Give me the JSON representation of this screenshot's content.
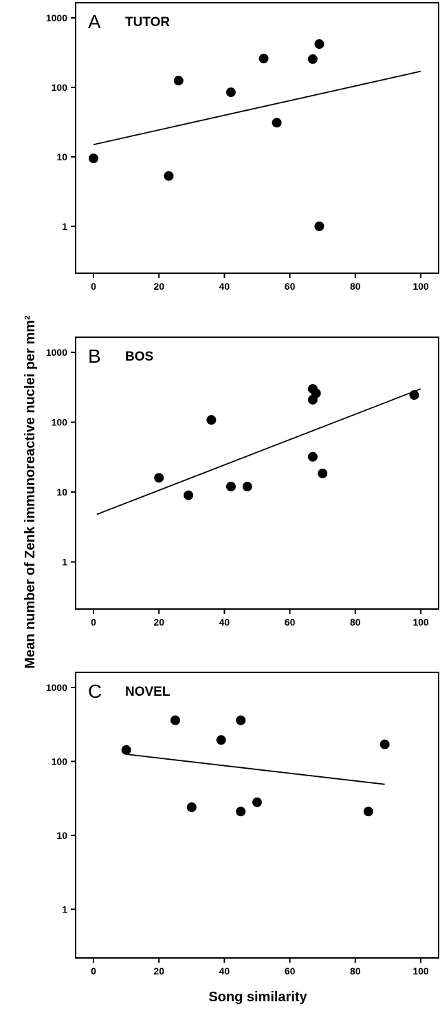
{
  "figure": {
    "ylabel": "Mean number of Zenk immunoreactive nuclei per mm²",
    "xlabel": "Song similarity"
  },
  "chart_data": [
    {
      "type": "scatter",
      "panel": "A",
      "title": "TUTOR",
      "xlim": [
        0,
        100
      ],
      "ylim": [
        0.4,
        1000
      ],
      "y_scale": "log",
      "x_ticks": [
        0,
        20,
        40,
        60,
        80,
        100
      ],
      "y_ticks": [
        1,
        10,
        100,
        1000
      ],
      "x_tick_labels": [
        "0",
        "20",
        "40",
        "60",
        "80",
        "100"
      ],
      "y_tick_labels": [
        "1",
        "10",
        "100",
        "1000"
      ],
      "points": [
        {
          "x": 0,
          "y": 9.5
        },
        {
          "x": 23,
          "y": 5.3
        },
        {
          "x": 26,
          "y": 125
        },
        {
          "x": 42,
          "y": 85
        },
        {
          "x": 52,
          "y": 260
        },
        {
          "x": 56,
          "y": 31
        },
        {
          "x": 67,
          "y": 255
        },
        {
          "x": 69,
          "y": 1
        },
        {
          "x": 69,
          "y": 420
        }
      ],
      "fit_line": {
        "x": [
          0,
          100
        ],
        "y": [
          15,
          170
        ]
      }
    },
    {
      "type": "scatter",
      "panel": "B",
      "title": "BOS",
      "xlim": [
        0,
        100
      ],
      "ylim": [
        0.4,
        1000
      ],
      "y_scale": "log",
      "x_ticks": [
        0,
        20,
        40,
        60,
        80,
        100
      ],
      "y_ticks": [
        1,
        10,
        100,
        1000
      ],
      "x_tick_labels": [
        "0",
        "20",
        "40",
        "60",
        "80",
        "100"
      ],
      "y_tick_labels": [
        "1",
        "10",
        "100",
        "1000"
      ],
      "points": [
        {
          "x": 20,
          "y": 16
        },
        {
          "x": 29,
          "y": 9
        },
        {
          "x": 36,
          "y": 108
        },
        {
          "x": 42,
          "y": 12
        },
        {
          "x": 47,
          "y": 12
        },
        {
          "x": 67,
          "y": 300
        },
        {
          "x": 67,
          "y": 210
        },
        {
          "x": 67,
          "y": 32
        },
        {
          "x": 68,
          "y": 260
        },
        {
          "x": 70,
          "y": 18.5
        },
        {
          "x": 98,
          "y": 245
        }
      ],
      "fit_line": {
        "x": [
          1,
          100
        ],
        "y": [
          4.8,
          300
        ]
      }
    },
    {
      "type": "scatter",
      "panel": "C",
      "title": "NOVEL",
      "xlim": [
        0,
        100
      ],
      "ylim": [
        0.4,
        1000
      ],
      "y_scale": "log",
      "x_ticks": [
        0,
        20,
        40,
        60,
        80,
        100
      ],
      "y_ticks": [
        1,
        10,
        100,
        1000
      ],
      "x_tick_labels": [
        "0",
        "20",
        "40",
        "60",
        "80",
        "100"
      ],
      "y_tick_labels": [
        "1",
        "10",
        "100",
        "1000"
      ],
      "points": [
        {
          "x": 10,
          "y": 143
        },
        {
          "x": 25,
          "y": 360
        },
        {
          "x": 30,
          "y": 24
        },
        {
          "x": 39,
          "y": 195
        },
        {
          "x": 45,
          "y": 360
        },
        {
          "x": 45,
          "y": 21
        },
        {
          "x": 50,
          "y": 28
        },
        {
          "x": 84,
          "y": 21
        },
        {
          "x": 89,
          "y": 170
        }
      ],
      "fit_line": {
        "x": [
          10,
          89
        ],
        "y": [
          125,
          49
        ]
      }
    }
  ]
}
